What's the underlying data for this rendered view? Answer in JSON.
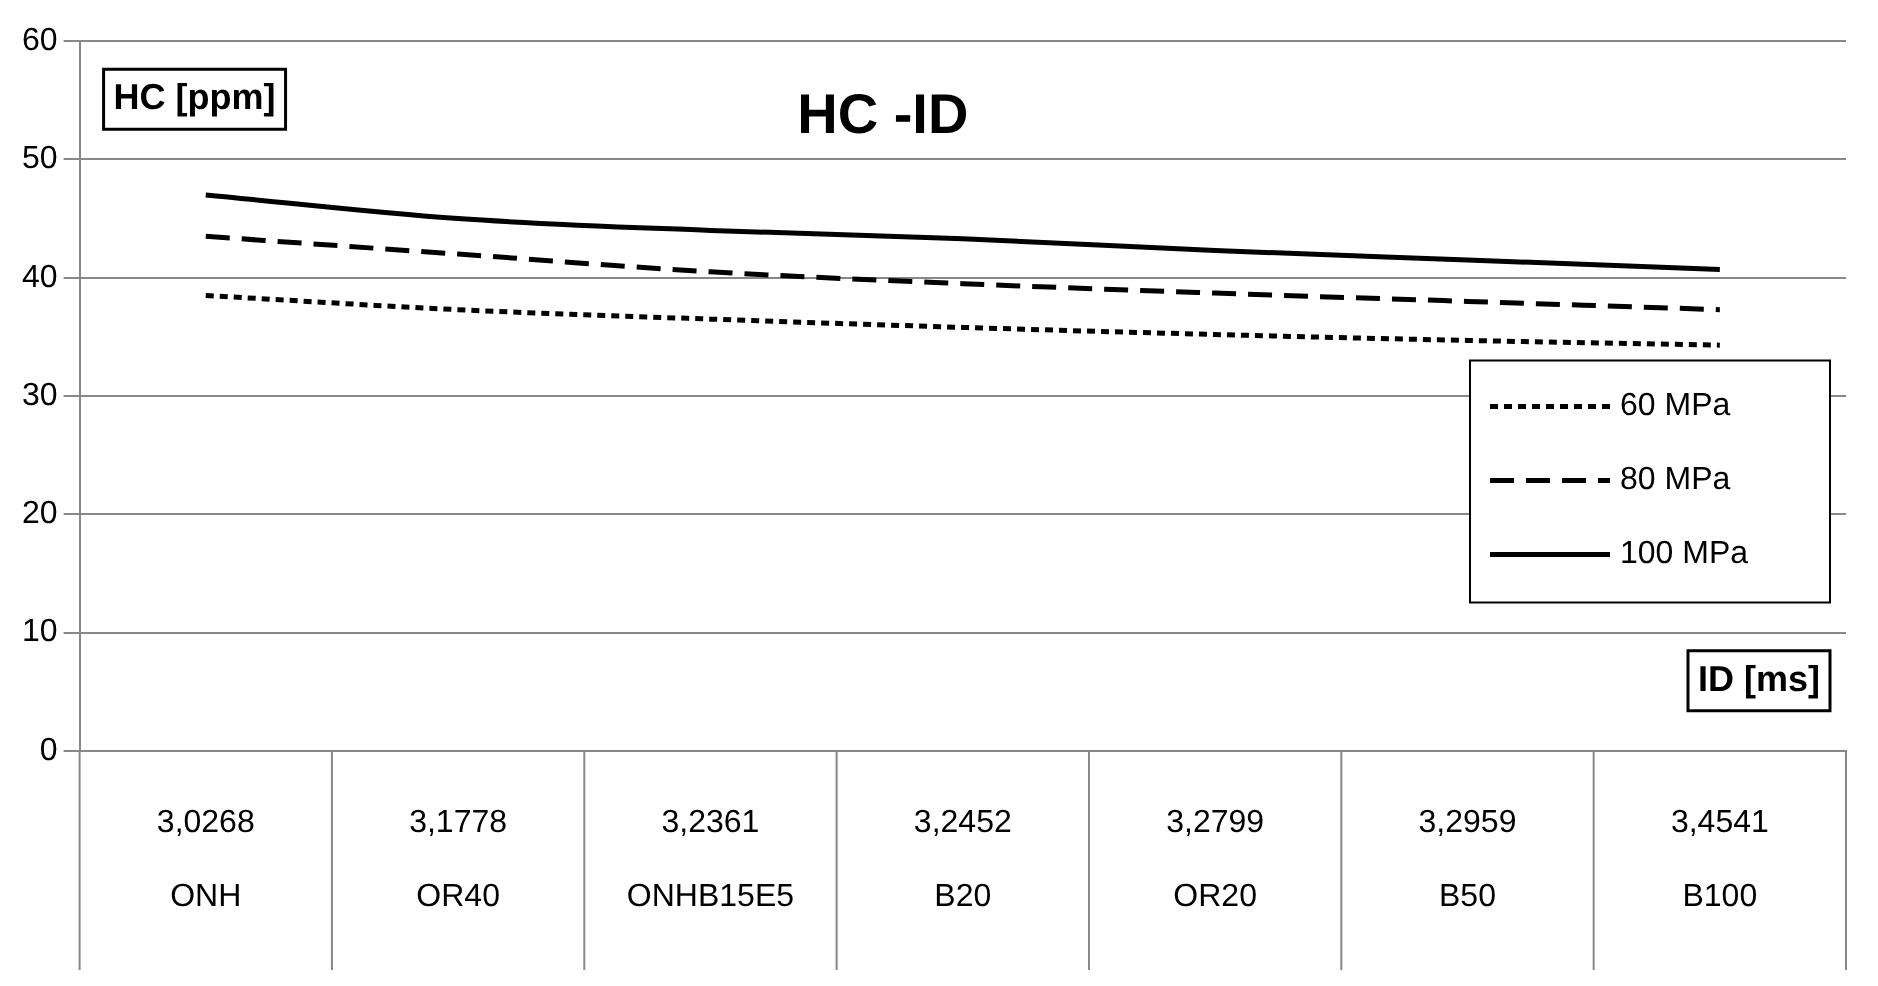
{
  "chart_data": {
    "type": "line",
    "title": "HC -ID",
    "ylabel": "HC [ppm]",
    "xlabel": "ID [ms]",
    "categories": [
      "3,0268\nONH",
      "3,1778\nOR40",
      "3,2361\nONHB15E5",
      "3,2452\nB20",
      "3,2799\nOR20",
      "3,2959\nB50",
      "3,4541\nB100"
    ],
    "series": [
      {
        "name": "60 MPa",
        "color": "#000000",
        "line_style": "dotted",
        "values": [
          38.5,
          37.3,
          36.5,
          35.8,
          35.2,
          34.7,
          34.3
        ]
      },
      {
        "name": "80 MPa",
        "color": "#000000",
        "line_style": "dashed",
        "values": [
          43.5,
          42,
          40.5,
          39.5,
          38.7,
          38,
          37.3
        ]
      },
      {
        "name": "100 MPa",
        "color": "#000000",
        "line_style": "solid",
        "values": [
          47,
          45,
          44,
          43.3,
          42.3,
          41.5,
          40.7
        ]
      }
    ],
    "ylim": [
      0,
      60
    ],
    "yticks": [
      0,
      10,
      20,
      30,
      40,
      50,
      60
    ],
    "grid": true,
    "legend": "right"
  }
}
